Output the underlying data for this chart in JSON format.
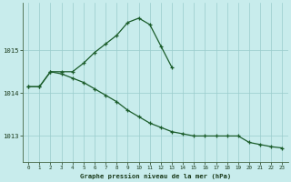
{
  "background_color": "#c8ecec",
  "plot_bg_color": "#c8ecec",
  "grid_color": "#99cccc",
  "line_color": "#1a5c2a",
  "xlabel": "Graphe pression niveau de la mer (hPa)",
  "hours": [
    0,
    1,
    2,
    3,
    4,
    5,
    6,
    7,
    8,
    9,
    10,
    11,
    12,
    13,
    14,
    15,
    16,
    17,
    18,
    19,
    20,
    21,
    22,
    23
  ],
  "line1": [
    1014.15,
    1014.15,
    1014.5,
    1014.5,
    1014.5,
    1014.7,
    1014.95,
    1015.15,
    1015.35,
    1015.65,
    1015.75,
    1015.6,
    1015.1,
    1014.6,
    null,
    null,
    null,
    null,
    null,
    null,
    null,
    null,
    null,
    null
  ],
  "line2": [
    1014.15,
    1014.15,
    1014.5,
    1014.45,
    1014.35,
    1014.25,
    1014.1,
    1013.95,
    1013.8,
    1013.6,
    1013.45,
    1013.3,
    1013.2,
    1013.1,
    1013.05,
    1013.0,
    1013.0,
    1013.0,
    1013.0,
    1013.0,
    1012.85,
    1012.8,
    1012.75,
    1012.72
  ],
  "ylim": [
    1012.4,
    1016.1
  ],
  "yticks": [
    1013,
    1014,
    1015
  ],
  "xlim": [
    -0.5,
    23.5
  ],
  "xticks": [
    0,
    1,
    2,
    3,
    4,
    5,
    6,
    7,
    8,
    9,
    10,
    11,
    12,
    13,
    14,
    15,
    16,
    17,
    18,
    19,
    20,
    21,
    22,
    23
  ]
}
